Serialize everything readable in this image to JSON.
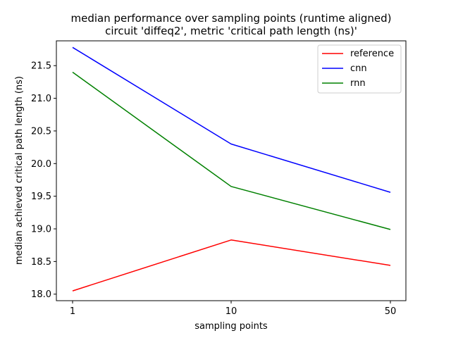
{
  "chart_data": {
    "type": "line",
    "title": "median performance over sampling points (runtime aligned)",
    "subtitle": "circuit 'diffeq2', metric 'critical path length (ns)'",
    "xlabel": "sampling points",
    "ylabel": "median achieved critical path length (ns)",
    "x": [
      "1",
      "10",
      "50"
    ],
    "ylim": [
      17.9,
      21.88
    ],
    "yticks": [
      "18.0",
      "18.5",
      "19.0",
      "19.5",
      "20.0",
      "20.5",
      "21.0",
      "21.5"
    ],
    "grid": false,
    "legend_position": "top-right",
    "series": [
      {
        "name": "reference",
        "color": "#ff0000",
        "values": [
          18.05,
          18.83,
          18.44
        ]
      },
      {
        "name": "cnn",
        "color": "#0000ff",
        "values": [
          21.78,
          20.3,
          19.56
        ]
      },
      {
        "name": "rnn",
        "color": "#008000",
        "values": [
          21.4,
          19.65,
          18.99
        ]
      }
    ]
  }
}
